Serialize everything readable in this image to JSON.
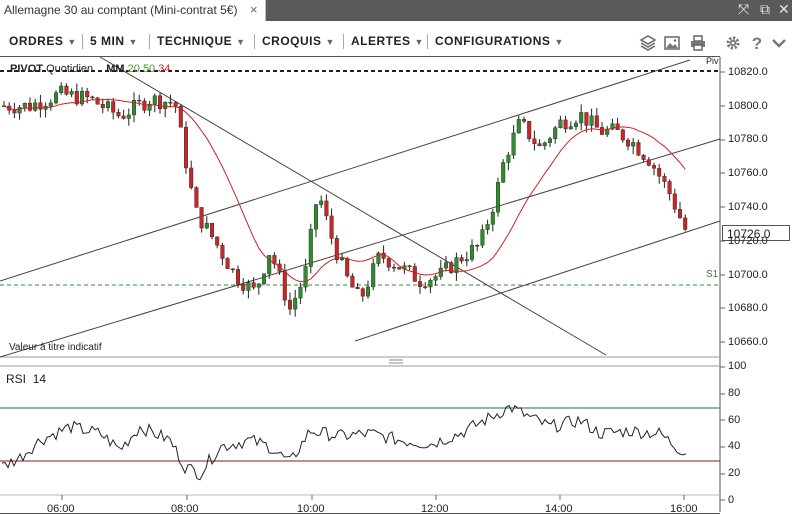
{
  "window": {
    "tab_title": "Allemagne 30 au comptant (Mini-contrat 5€)",
    "tab_close": "×"
  },
  "toolbar": {
    "menus": [
      {
        "label": "ORDRES"
      },
      {
        "label": "5 MIN"
      },
      {
        "label": "TECHNIQUE"
      },
      {
        "label": "CROQUIS"
      },
      {
        "label": "ALERTES"
      },
      {
        "label": "CONFIGURATIONS"
      }
    ],
    "dropdown_arrow": "▼",
    "icons": [
      "layers-icon",
      "image-icon",
      "print-icon",
      "gear-icon",
      "help-icon",
      "chevron-down-icon"
    ]
  },
  "price_panel": {
    "indicator_pivot": "PIVOT",
    "indicator_pivot_period": "Quotidien",
    "indicator_ma": "MM",
    "ma_periods": [
      "20",
      "50",
      "34"
    ],
    "ma_colors": [
      "#4a9a2a",
      "#4a9a2a",
      "#cc2222"
    ],
    "pivot_label": "Piv",
    "s1_label": "S1",
    "disclaimer": "Valeur à titre indicatif",
    "current_price": "10726.0",
    "yaxis_ticks": [
      "10820.0",
      "10800.0",
      "10780.0",
      "10760.0",
      "10740.0",
      "10720.0",
      "10700.0",
      "10680.0",
      "10660.0"
    ]
  },
  "rsi_panel": {
    "label": "RSI",
    "period": "14",
    "yaxis_ticks": [
      "100",
      "80",
      "60",
      "40",
      "20",
      "0"
    ]
  },
  "time_axis": [
    "06:00",
    "08:00",
    "10:00",
    "12:00",
    "14:00",
    "16:00"
  ],
  "colors": {
    "bull_candle": "#2e8b2e",
    "bear_candle": "#c62828",
    "ma_line": "#cc2222",
    "rsi_line": "#222222",
    "rsi_upper_line": "#2a6a6a",
    "rsi_lower_line": "#8b1a1a",
    "s1_line": "#2e8b2e",
    "pivot_line": "#000000"
  }
}
